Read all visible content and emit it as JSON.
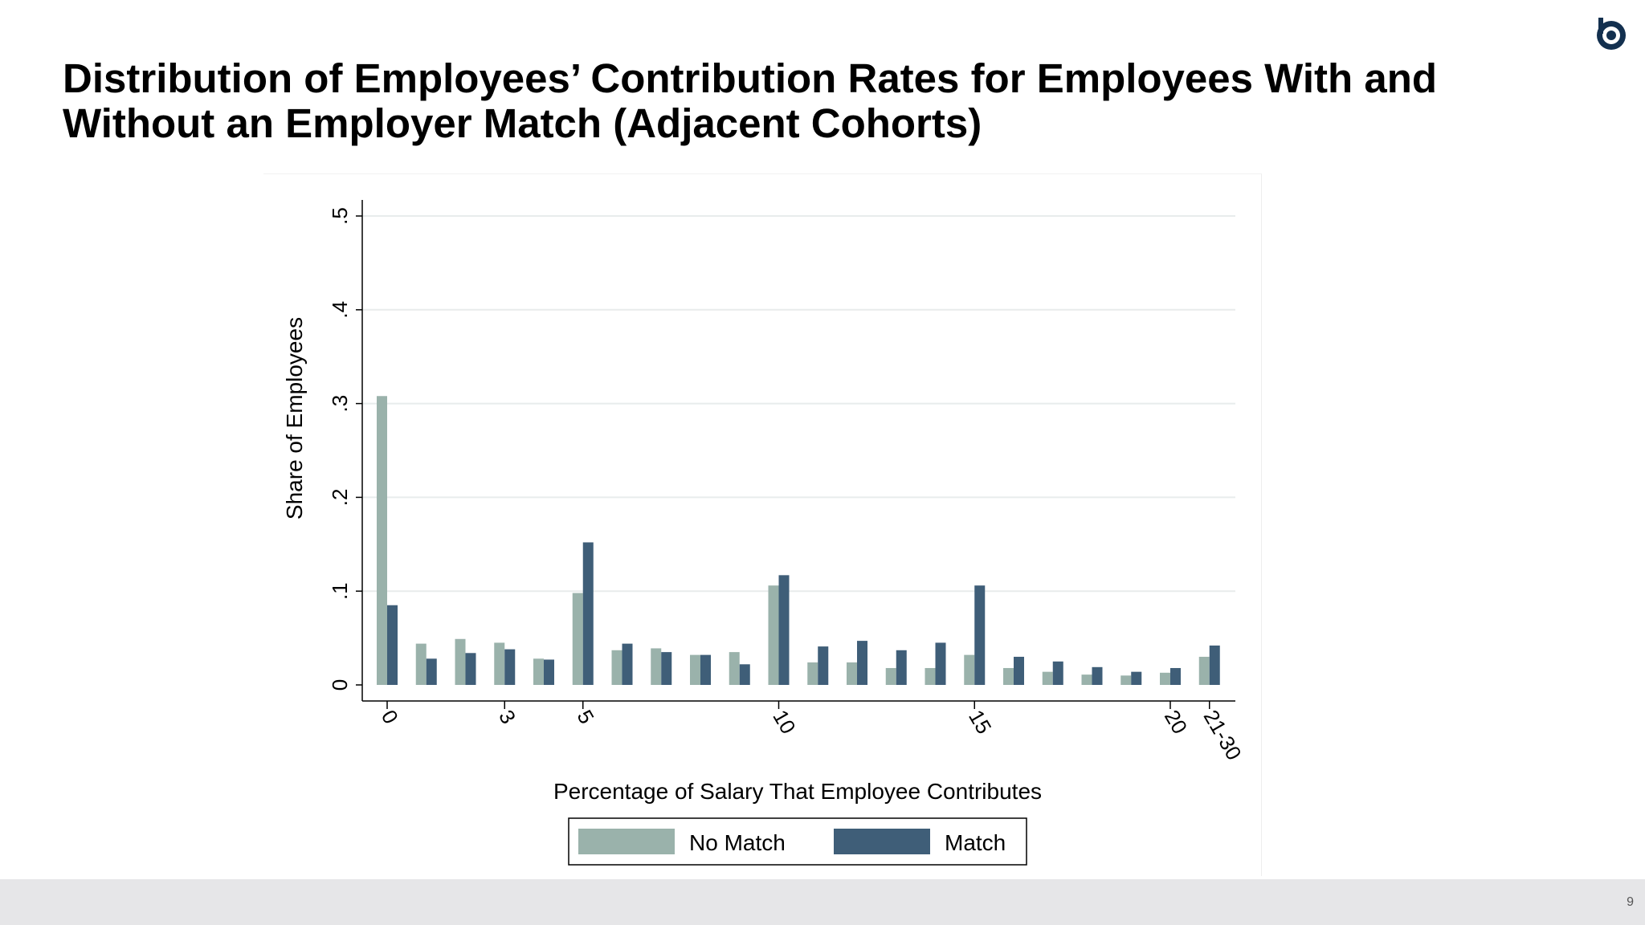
{
  "slide": {
    "title": "Distribution of Employees’ Contribution Rates for Employees With and Without an Employer Match (Adjacent Cohorts)",
    "page_number": "9",
    "logo_icon": "company-logo-icon"
  },
  "colors": {
    "no_match": "#9ab2ab",
    "match": "#3f5e78",
    "footer": "#e6e6e8",
    "logo": "#13304f"
  },
  "chart_data": {
    "type": "bar",
    "xlabel": "Percentage of Salary That Employee Contributes",
    "ylabel": "Share of Employees",
    "ylim": [
      0,
      0.5
    ],
    "yticks": [
      0,
      0.1,
      0.2,
      0.3,
      0.4,
      0.5
    ],
    "ytick_labels": [
      "0",
      ".1",
      ".2",
      ".3",
      ".4",
      ".5"
    ],
    "categories": [
      "0",
      "1",
      "2",
      "3",
      "4",
      "5",
      "6",
      "7",
      "8",
      "9",
      "10",
      "11",
      "12",
      "13",
      "14",
      "15",
      "16",
      "17",
      "18",
      "19",
      "20",
      "21-30"
    ],
    "xtick_labels": [
      {
        "index": 0,
        "label": "0"
      },
      {
        "index": 3,
        "label": "3"
      },
      {
        "index": 5,
        "label": "5"
      },
      {
        "index": 10,
        "label": "10"
      },
      {
        "index": 15,
        "label": "15"
      },
      {
        "index": 20,
        "label": "20"
      },
      {
        "index": 21,
        "label": "21-30"
      }
    ],
    "series": [
      {
        "name": "No Match",
        "values": [
          0.308,
          0.044,
          0.049,
          0.045,
          0.028,
          0.098,
          0.037,
          0.039,
          0.032,
          0.035,
          0.106,
          0.024,
          0.024,
          0.018,
          0.018,
          0.032,
          0.018,
          0.014,
          0.011,
          0.01,
          0.013,
          0.03
        ]
      },
      {
        "name": "Match",
        "values": [
          0.085,
          0.028,
          0.034,
          0.038,
          0.027,
          0.152,
          0.044,
          0.035,
          0.032,
          0.022,
          0.117,
          0.041,
          0.047,
          0.037,
          0.045,
          0.106,
          0.03,
          0.025,
          0.019,
          0.014,
          0.018,
          0.042
        ]
      }
    ],
    "grid": true,
    "legend_position": "bottom"
  }
}
